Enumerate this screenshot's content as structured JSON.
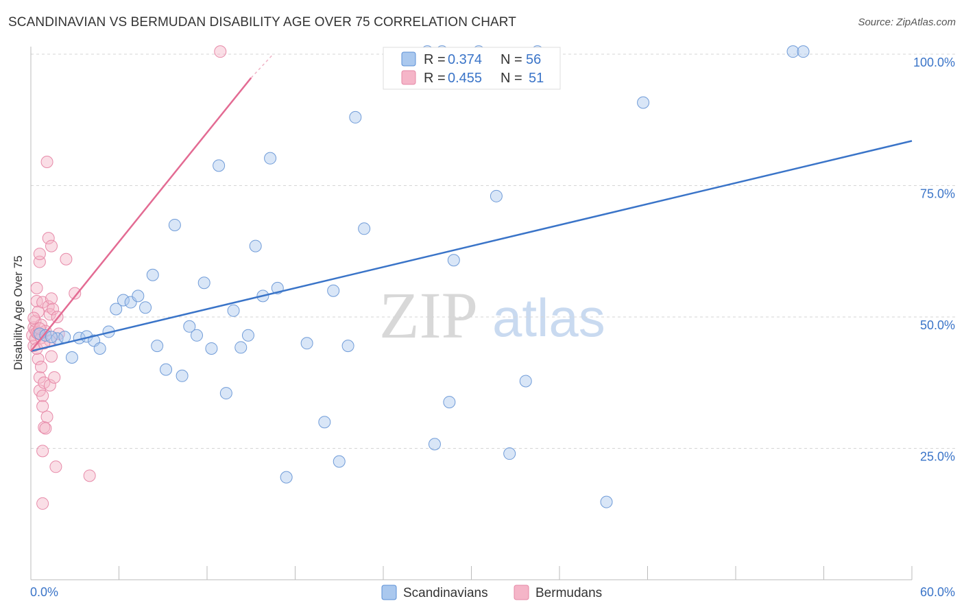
{
  "title": "SCANDINAVIAN VS BERMUDAN DISABILITY AGE OVER 75 CORRELATION CHART",
  "source": "Source: ZipAtlas.com",
  "watermark": {
    "zip": "ZIP",
    "atlas": "atlas"
  },
  "colors": {
    "blue": "#3a74c8",
    "blue_fill": "#aac8ee",
    "pink": "#e36b93",
    "pink_fill": "#f5b5c8",
    "grid": "#d5d5d5"
  },
  "legend": {
    "series": [
      {
        "r_label": "R =",
        "r_value": "0.374",
        "n_label": "N =",
        "n_value": "56"
      },
      {
        "r_label": "R =",
        "r_value": "0.455",
        "n_label": "N =",
        "n_value": "51"
      }
    ]
  },
  "chart_data": {
    "type": "scatter",
    "title": "SCANDINAVIAN VS BERMUDAN DISABILITY AGE OVER 75 CORRELATION CHART",
    "xlabel": "",
    "ylabel": "Disability Age Over 75",
    "xlim": [
      0,
      60
    ],
    "ylim": [
      0,
      105
    ],
    "x_tick_labels": [
      "0.0%",
      "60.0%"
    ],
    "y_ticks": [
      25,
      50,
      75,
      100
    ],
    "y_tick_labels": [
      "25.0%",
      "50.0%",
      "75.0%",
      "100.0%"
    ],
    "grid": "horizontal dashed",
    "legend_position": "top-center",
    "series": [
      {
        "name": "Scandinavians",
        "color": "#3a74c8",
        "points": [
          [
            0.6,
            46.8
          ],
          [
            1.0,
            46.5
          ],
          [
            1.8,
            45.9
          ],
          [
            2.3,
            46.2
          ],
          [
            2.8,
            42.3
          ],
          [
            3.3,
            46.0
          ],
          [
            3.8,
            46.3
          ],
          [
            4.3,
            45.5
          ],
          [
            4.7,
            44.0
          ],
          [
            5.3,
            47.2
          ],
          [
            5.8,
            51.5
          ],
          [
            6.3,
            53.2
          ],
          [
            6.8,
            52.8
          ],
          [
            7.3,
            54.0
          ],
          [
            7.8,
            51.8
          ],
          [
            8.3,
            58.0
          ],
          [
            8.6,
            44.5
          ],
          [
            9.2,
            40.0
          ],
          [
            9.8,
            67.5
          ],
          [
            10.3,
            38.8
          ],
          [
            10.8,
            48.2
          ],
          [
            11.3,
            46.5
          ],
          [
            11.8,
            56.5
          ],
          [
            12.3,
            44.0
          ],
          [
            12.8,
            78.8
          ],
          [
            13.3,
            35.5
          ],
          [
            13.8,
            51.2
          ],
          [
            14.3,
            44.2
          ],
          [
            14.8,
            46.5
          ],
          [
            15.3,
            63.5
          ],
          [
            15.8,
            54.0
          ],
          [
            16.3,
            80.2
          ],
          [
            16.8,
            55.5
          ],
          [
            17.4,
            19.5
          ],
          [
            18.8,
            45.0
          ],
          [
            20.0,
            30.0
          ],
          [
            20.6,
            55.0
          ],
          [
            21.0,
            22.5
          ],
          [
            21.6,
            44.5
          ],
          [
            22.1,
            88.0
          ],
          [
            22.7,
            66.8
          ],
          [
            27.0,
            100.5
          ],
          [
            27.5,
            25.8
          ],
          [
            28.0,
            100.5
          ],
          [
            28.5,
            33.8
          ],
          [
            28.8,
            60.8
          ],
          [
            30.5,
            100.5
          ],
          [
            31.7,
            73.0
          ],
          [
            32.6,
            24.0
          ],
          [
            33.7,
            37.8
          ],
          [
            39.2,
            14.8
          ],
          [
            41.7,
            90.8
          ],
          [
            51.9,
            100.5
          ],
          [
            52.6,
            100.5
          ],
          [
            34.5,
            100.5
          ],
          [
            1.4,
            46.2
          ]
        ]
      },
      {
        "name": "Bermudans",
        "color": "#e36b93",
        "points": [
          [
            0.1,
            46.5
          ],
          [
            0.2,
            48.0
          ],
          [
            0.2,
            44.5
          ],
          [
            0.3,
            47.5
          ],
          [
            0.3,
            45.8
          ],
          [
            0.3,
            49.2
          ],
          [
            0.4,
            47.0
          ],
          [
            0.4,
            53.0
          ],
          [
            0.4,
            55.5
          ],
          [
            0.5,
            46.8
          ],
          [
            0.5,
            51.0
          ],
          [
            0.5,
            42.0
          ],
          [
            0.6,
            38.5
          ],
          [
            0.6,
            36.0
          ],
          [
            0.6,
            60.5
          ],
          [
            0.6,
            62.0
          ],
          [
            0.7,
            48.5
          ],
          [
            0.7,
            46.0
          ],
          [
            0.7,
            40.5
          ],
          [
            0.8,
            52.8
          ],
          [
            0.8,
            35.0
          ],
          [
            0.8,
            33.0
          ],
          [
            0.8,
            24.5
          ],
          [
            0.8,
            14.5
          ],
          [
            0.9,
            37.5
          ],
          [
            0.9,
            29.0
          ],
          [
            1.0,
            28.8
          ],
          [
            1.0,
            47.3
          ],
          [
            1.1,
            31.0
          ],
          [
            1.1,
            79.5
          ],
          [
            1.2,
            65.0
          ],
          [
            1.2,
            52.0
          ],
          [
            1.3,
            50.5
          ],
          [
            1.3,
            37.0
          ],
          [
            1.3,
            45.5
          ],
          [
            1.4,
            63.5
          ],
          [
            1.4,
            53.5
          ],
          [
            1.4,
            42.5
          ],
          [
            1.5,
            51.5
          ],
          [
            1.6,
            38.5
          ],
          [
            1.7,
            21.5
          ],
          [
            1.8,
            50.0
          ],
          [
            1.9,
            46.8
          ],
          [
            2.4,
            61.0
          ],
          [
            3.0,
            54.5
          ],
          [
            4.0,
            19.8
          ],
          [
            12.9,
            100.5
          ],
          [
            0.2,
            49.8
          ],
          [
            0.4,
            44.0
          ],
          [
            0.6,
            47.8
          ],
          [
            0.9,
            45.0
          ]
        ]
      }
    ],
    "trendlines": [
      {
        "series": "Scandinavians",
        "x": [
          0,
          60
        ],
        "y": [
          43.5,
          83.5
        ]
      },
      {
        "series": "Bermudans",
        "x": [
          0,
          15.0
        ],
        "y": [
          43.5,
          95.5
        ],
        "dashed_extension_to": [
          16.5,
          100.0
        ]
      }
    ]
  }
}
